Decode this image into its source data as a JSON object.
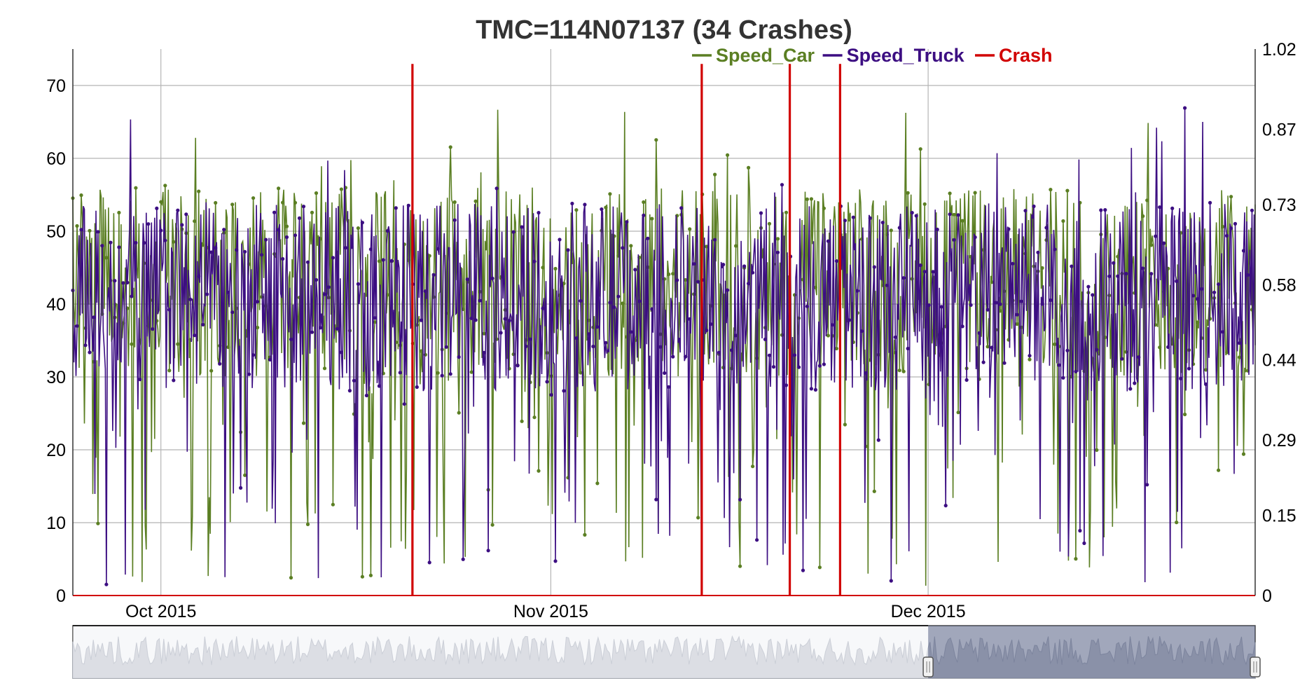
{
  "chart_data": {
    "type": "line",
    "title": "TMC=114N07137 (34 Crashes)",
    "x_ticks": [
      "Oct 2015",
      "Nov 2015",
      "Dec 2015"
    ],
    "x_range": [
      "2015-09-24",
      "2015-12-27"
    ],
    "y_left": {
      "ylim": [
        0,
        75
      ],
      "ticks": [
        "0",
        "10",
        "20",
        "30",
        "40",
        "50",
        "60",
        "70"
      ]
    },
    "y_right": {
      "ylim": [
        0,
        1.02
      ],
      "ticks": [
        "0",
        "0.15",
        "0.29",
        "0.44",
        "0.58",
        "0.73",
        "0.87",
        "1.02"
      ]
    },
    "grid": true,
    "legend_position": "top",
    "series": [
      {
        "name": "Speed_Car",
        "color": "#5b7f23",
        "axis": "left",
        "style": "line+points"
      },
      {
        "name": "Speed_Truck",
        "color": "#3c0e82",
        "axis": "left",
        "style": "line+points"
      },
      {
        "name": "Crash",
        "color": "#d10000",
        "axis": "right",
        "style": "impulse",
        "x": [
          "2015-10-21",
          "2015-11-13",
          "2015-11-20",
          "2015-11-24"
        ],
        "values": [
          1,
          1,
          1,
          1
        ]
      }
    ],
    "range_selector": {
      "visible": true,
      "selected_from": "2015-12-01",
      "selected_to": "2015-12-27"
    }
  }
}
